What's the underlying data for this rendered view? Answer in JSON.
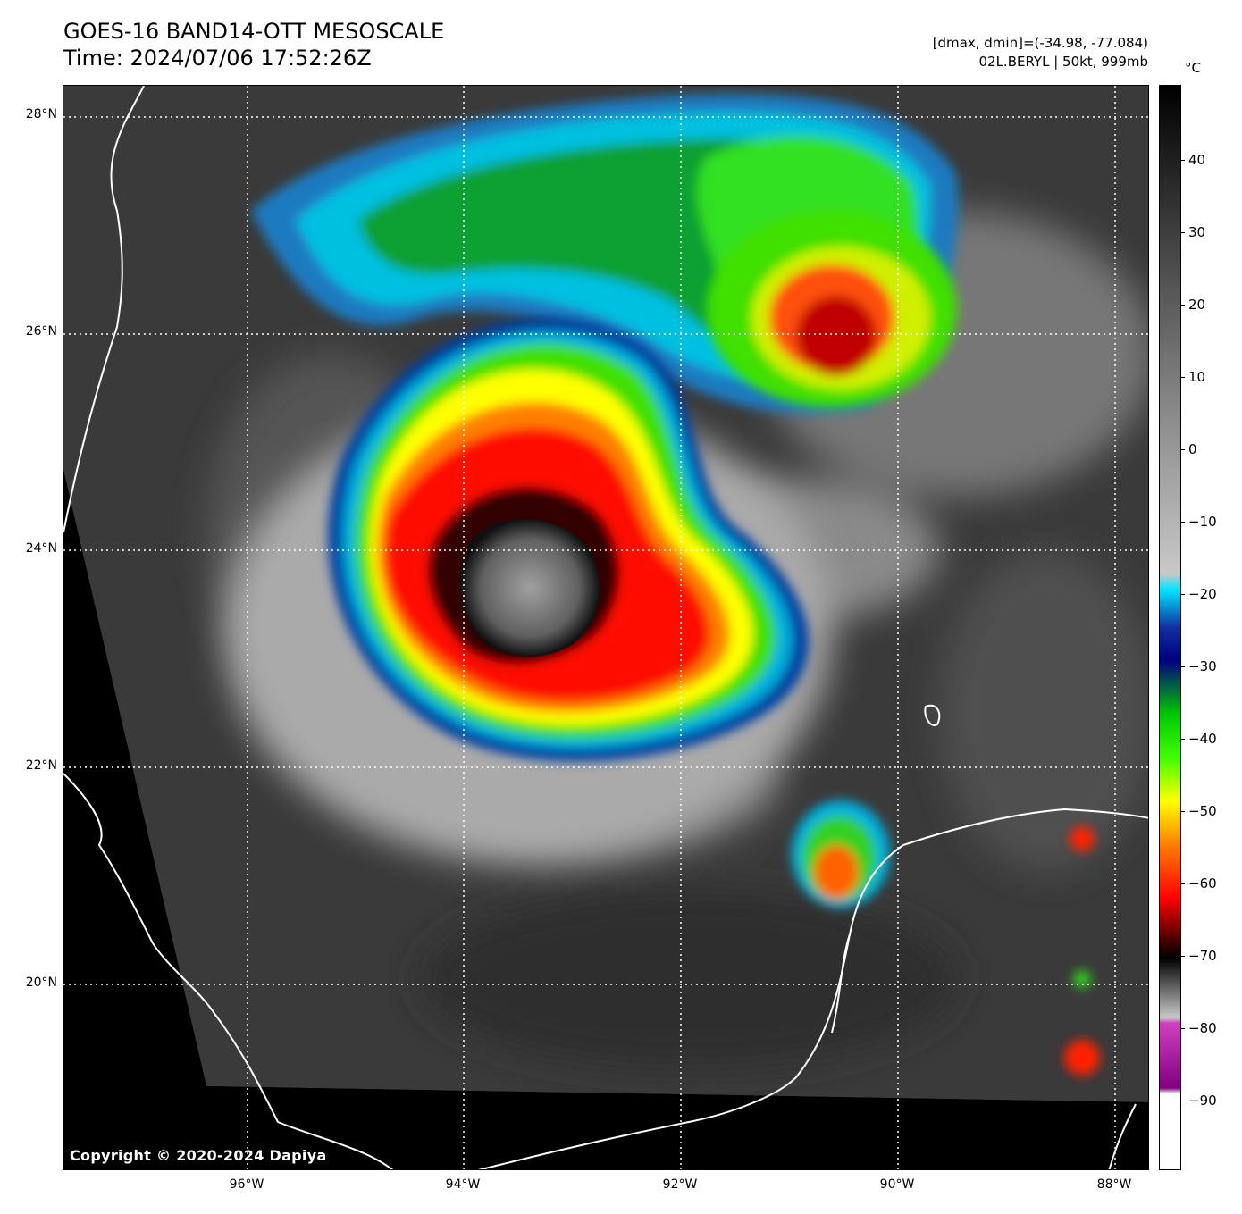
{
  "header": {
    "title_line1": "GOES-16 BAND14-OTT MESOSCALE",
    "title_line2": "Time: 2024/07/06 17:52:26Z",
    "info_line1": "[dmax, dmin]=(-34.98, -77.084)",
    "info_line2": "02L.BERYL | 50kt, 999mb"
  },
  "map": {
    "copyright": "Copyright © 2020-2024 Dapiya",
    "lat_labels": [
      "28°N",
      "26°N",
      "24°N",
      "22°N",
      "20°N"
    ],
    "lon_labels": [
      "96°W",
      "94°W",
      "92°W",
      "90°W",
      "88°W"
    ]
  },
  "colorbar": {
    "unit": "°C",
    "ticks": [
      "40",
      "30",
      "20",
      "10",
      "0",
      "−10",
      "−20",
      "−30",
      "−40",
      "−50",
      "−60",
      "−70",
      "−80",
      "−90"
    ],
    "colors": {
      "warm_black": "#000000",
      "gray_mid": "#808080",
      "gray_light": "#c8c8c8",
      "cyan": "#00e5ff",
      "blue": "#1030a0",
      "navy": "#000080",
      "green": "#00c800",
      "lime": "#40ff00",
      "yellow": "#ffff00",
      "orange": "#ff8000",
      "red": "#ff0000",
      "dark_red": "#400000",
      "magenta": "#d040c0",
      "purple": "#800080",
      "white": "#ffffff"
    }
  }
}
